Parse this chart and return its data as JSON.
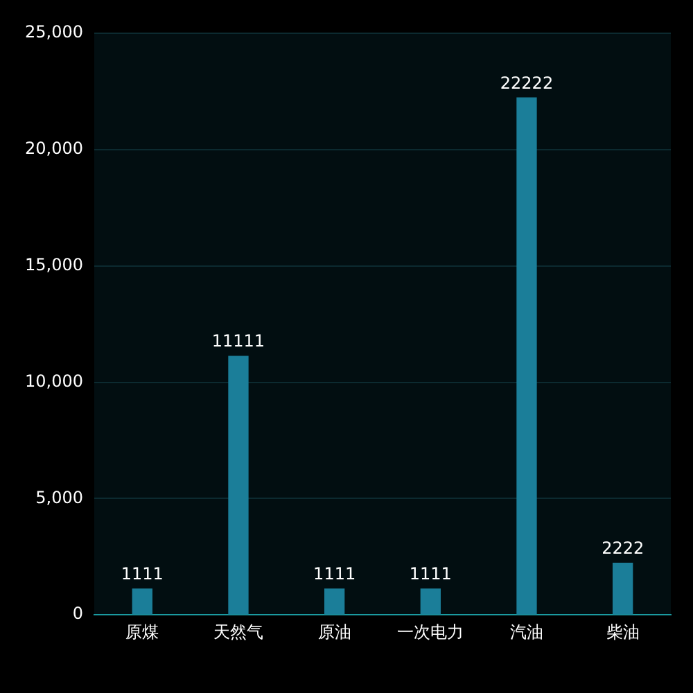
{
  "chart_data": {
    "type": "bar",
    "categories": [
      "原煤",
      "天然气",
      "原油",
      "一次电力",
      "汽油",
      "柴油"
    ],
    "values": [
      1111,
      11111,
      1111,
      1111,
      22222,
      2222
    ],
    "color": "#1b7e99",
    "ylim": [
      0,
      25000
    ],
    "yticks": [
      {
        "value": 0,
        "label": "0"
      },
      {
        "value": 5000,
        "label": "5,000"
      },
      {
        "value": 10000,
        "label": "10,000"
      },
      {
        "value": 15000,
        "label": "15,000"
      },
      {
        "value": 20000,
        "label": "20,000"
      },
      {
        "value": 25000,
        "label": "25,000"
      }
    ],
    "grid": "y",
    "data_labels": true
  }
}
